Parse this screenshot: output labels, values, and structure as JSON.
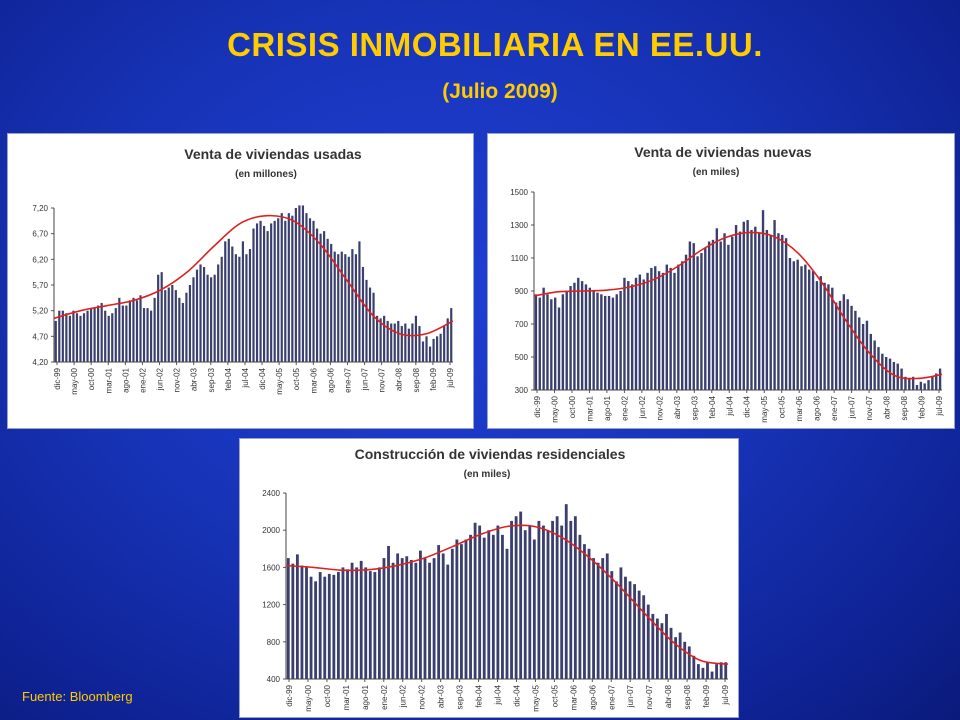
{
  "title": "CRISIS INMOBILIARIA EN EE.UU.",
  "subtitle": "(Julio 2009)",
  "source": "Fuente: Bloomberg",
  "colors": {
    "background": "#1a36c4",
    "title": "#ffcc00",
    "bar": "#3a3f6e",
    "trend": "#e02020"
  },
  "chart_data": [
    {
      "type": "bar",
      "title": "Venta de viviendas usadas",
      "subtitle": "(en millones)",
      "yticks": [
        "4,20",
        "4,70",
        "5,20",
        "5,70",
        "6,20",
        "6,70",
        "7,20"
      ],
      "ylim": [
        4.2,
        7.2
      ],
      "xticks": [
        "dic-99",
        "may-00",
        "oct-00",
        "mar-01",
        "ago-01",
        "ene-02",
        "jun-02",
        "nov-02",
        "abr-03",
        "sep-03",
        "feb-04",
        "jul-04",
        "dic-04",
        "may-05",
        "oct-05",
        "mar-06",
        "ago-06",
        "ene-07",
        "jun-07",
        "nov-07",
        "abr-08",
        "sep-08",
        "feb-09",
        "jul-09"
      ],
      "series": [
        {
          "kind": "bars",
          "values": [
            5.0,
            5.2,
            5.2,
            5.15,
            5.1,
            5.2,
            5.15,
            5.1,
            5.15,
            5.2,
            5.25,
            5.25,
            5.3,
            5.35,
            5.2,
            5.1,
            5.15,
            5.25,
            5.45,
            5.3,
            5.3,
            5.4,
            5.45,
            5.4,
            5.5,
            5.25,
            5.25,
            5.2,
            5.45,
            5.9,
            5.95,
            5.6,
            5.65,
            5.7,
            5.6,
            5.45,
            5.35,
            5.55,
            5.7,
            5.85,
            6.0,
            6.1,
            6.05,
            5.9,
            5.85,
            5.9,
            6.1,
            6.25,
            6.55,
            6.6,
            6.45,
            6.3,
            6.25,
            6.55,
            6.3,
            6.4,
            6.8,
            6.9,
            6.95,
            6.85,
            6.75,
            6.9,
            6.95,
            7.0,
            7.1,
            6.95,
            7.1,
            7.05,
            7.2,
            7.25,
            7.25,
            7.1,
            7.0,
            6.95,
            6.8,
            6.7,
            6.75,
            6.6,
            6.5,
            6.35,
            6.3,
            6.35,
            6.3,
            6.25,
            6.4,
            6.3,
            6.55,
            6.05,
            5.8,
            5.65,
            5.55,
            5.1,
            5.05,
            5.1,
            5.0,
            4.95,
            4.95,
            5.0,
            4.9,
            4.95,
            4.85,
            4.95,
            5.1,
            4.9,
            4.6,
            4.7,
            4.5,
            4.65,
            4.7,
            4.75,
            4.9,
            5.05,
            5.25
          ]
        },
        {
          "kind": "trend",
          "values": [
            5.05,
            5.2,
            5.3,
            5.4,
            5.6,
            5.95,
            6.45,
            6.9,
            7.05,
            6.95,
            6.5,
            5.8,
            5.1,
            4.75,
            4.75,
            5.0
          ]
        }
      ]
    },
    {
      "type": "bar",
      "title": "Venta de viviendas nuevas",
      "subtitle": "(en miles)",
      "yticks": [
        "300",
        "500",
        "700",
        "900",
        "1100",
        "1300",
        "1500"
      ],
      "ylim": [
        300,
        1500
      ],
      "xticks": [
        "dic-99",
        "may-00",
        "oct-00",
        "mar-01",
        "ago-01",
        "ene-02",
        "jun-02",
        "nov-02",
        "abr-03",
        "sep-03",
        "feb-04",
        "jul-04",
        "dic-04",
        "may-05",
        "oct-05",
        "mar-06",
        "ago-06",
        "ene-07",
        "jun-07",
        "nov-07",
        "abr-08",
        "sep-08",
        "feb-09",
        "jul-09"
      ],
      "series": [
        {
          "kind": "bars",
          "values": [
            880,
            860,
            920,
            880,
            850,
            860,
            800,
            880,
            900,
            930,
            950,
            980,
            960,
            940,
            920,
            900,
            890,
            880,
            870,
            870,
            860,
            880,
            900,
            980,
            960,
            940,
            980,
            1000,
            970,
            1010,
            1040,
            1050,
            1020,
            1010,
            1060,
            1040,
            1010,
            1060,
            1080,
            1120,
            1200,
            1190,
            1110,
            1130,
            1160,
            1200,
            1210,
            1280,
            1200,
            1250,
            1180,
            1230,
            1300,
            1260,
            1320,
            1330,
            1270,
            1290,
            1250,
            1390,
            1270,
            1240,
            1330,
            1250,
            1240,
            1220,
            1100,
            1080,
            1090,
            1050,
            1060,
            1030,
            1020,
            960,
            990,
            950,
            940,
            920,
            830,
            840,
            880,
            850,
            810,
            780,
            740,
            700,
            720,
            640,
            600,
            560,
            520,
            500,
            490,
            470,
            460,
            430,
            380,
            370,
            380,
            330,
            350,
            340,
            360,
            380,
            400,
            430
          ]
        },
        {
          "kind": "trend",
          "values": [
            870,
            895,
            900,
            905,
            925,
            970,
            1050,
            1150,
            1225,
            1255,
            1230,
            1130,
            950,
            720,
            520,
            390,
            370,
            395
          ]
        }
      ]
    },
    {
      "type": "bar",
      "title": "Construcción de viviendas residenciales",
      "subtitle": "(en miles)",
      "yticks": [
        "400",
        "800",
        "1200",
        "1600",
        "2000",
        "2400"
      ],
      "ylim": [
        400,
        2400
      ],
      "xticks": [
        "dic-99",
        "may-00",
        "oct-00",
        "mar-01",
        "ago-01",
        "ene-02",
        "jun-02",
        "nov-02",
        "abr-03",
        "sep-03",
        "feb-04",
        "jul-04",
        "dic-04",
        "may-05",
        "oct-05",
        "mar-06",
        "ago-06",
        "ene-07",
        "jun-07",
        "nov-07",
        "abr-08",
        "sep-08",
        "feb-09",
        "jul-09"
      ],
      "series": [
        {
          "kind": "bars",
          "values": [
            1700,
            1640,
            1740,
            1620,
            1600,
            1500,
            1450,
            1550,
            1500,
            1530,
            1520,
            1550,
            1600,
            1580,
            1650,
            1600,
            1670,
            1600,
            1560,
            1550,
            1600,
            1700,
            1830,
            1650,
            1750,
            1700,
            1720,
            1680,
            1650,
            1780,
            1700,
            1650,
            1700,
            1840,
            1750,
            1630,
            1800,
            1900,
            1850,
            1900,
            1950,
            2080,
            2050,
            1920,
            2000,
            1950,
            2050,
            1950,
            1800,
            2100,
            2150,
            2200,
            2000,
            2050,
            1900,
            2100,
            2050,
            2000,
            2100,
            2150,
            2050,
            2280,
            2100,
            2150,
            1950,
            1850,
            1800,
            1700,
            1650,
            1700,
            1750,
            1560,
            1450,
            1600,
            1500,
            1450,
            1420,
            1350,
            1300,
            1200,
            1100,
            1050,
            1000,
            1100,
            950,
            850,
            900,
            800,
            750,
            650,
            560,
            520,
            580,
            480,
            560,
            580,
            580
          ]
        },
        {
          "kind": "trend",
          "values": [
            1620,
            1600,
            1570,
            1575,
            1620,
            1700,
            1820,
            1950,
            2040,
            2040,
            1920,
            1700,
            1420,
            1100,
            800,
            600,
            560
          ]
        }
      ]
    }
  ]
}
